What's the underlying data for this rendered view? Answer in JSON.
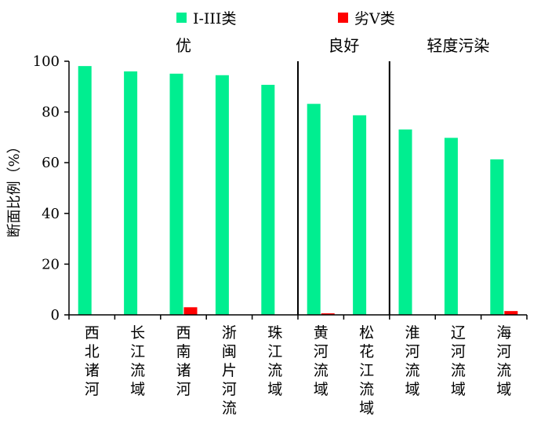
{
  "chart_data": {
    "type": "bar",
    "title": "",
    "xlabel": "",
    "ylabel": "断面比例（%）",
    "ylim": [
      0,
      100
    ],
    "yticks": [
      0,
      20,
      40,
      60,
      80,
      100
    ],
    "yticks_labels": [
      "0",
      "20",
      "40",
      "60",
      "80",
      "100"
    ],
    "grid": false,
    "legend_position": "top",
    "categories": [
      "西北诸河",
      "长江流域",
      "西南诸河",
      "浙闽片河流",
      "珠江流域",
      "黄河流域",
      "松花江流域",
      "淮河流域",
      "辽河流域",
      "海河流域"
    ],
    "series": [
      {
        "name": "I-III类",
        "color": "#00ee90",
        "values": [
          98.1,
          96.0,
          95.1,
          94.5,
          90.7,
          83.2,
          78.7,
          73.1,
          69.8,
          61.3
        ]
      },
      {
        "name": "劣V类",
        "color": "#ff0000",
        "values": [
          0,
          0,
          3.0,
          0,
          0,
          0.6,
          0,
          0,
          0,
          1.5
        ]
      }
    ],
    "groups": [
      {
        "label": "优",
        "from": 0,
        "to": 4
      },
      {
        "label": "良好",
        "from": 5,
        "to": 6
      },
      {
        "label": "轻度污染",
        "from": 7,
        "to": 9
      }
    ]
  }
}
